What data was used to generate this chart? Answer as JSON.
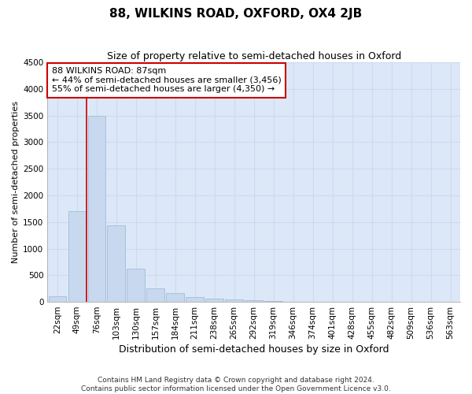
{
  "title": "88, WILKINS ROAD, OXFORD, OX4 2JB",
  "subtitle": "Size of property relative to semi-detached houses in Oxford",
  "xlabel": "Distribution of semi-detached houses by size in Oxford",
  "ylabel": "Number of semi-detached properties",
  "footer_line1": "Contains HM Land Registry data © Crown copyright and database right 2024.",
  "footer_line2": "Contains public sector information licensed under the Open Government Licence v3.0.",
  "categories": [
    "22sqm",
    "49sqm",
    "76sqm",
    "103sqm",
    "130sqm",
    "157sqm",
    "184sqm",
    "211sqm",
    "238sqm",
    "265sqm",
    "292sqm",
    "319sqm",
    "346sqm",
    "374sqm",
    "401sqm",
    "428sqm",
    "455sqm",
    "482sqm",
    "509sqm",
    "536sqm",
    "563sqm"
  ],
  "bar_values": [
    110,
    1700,
    3500,
    1430,
    620,
    255,
    160,
    95,
    65,
    40,
    25,
    12,
    6,
    3,
    2,
    1,
    1,
    1,
    0,
    0,
    0
  ],
  "bar_color": "#c8d8ee",
  "bar_edge_color": "#a0bcd8",
  "grid_color": "#cddaee",
  "bg_color": "#dce8f8",
  "fig_bg_color": "#ffffff",
  "vline_x": 1.5,
  "vline_color": "#cc0000",
  "ylim": [
    0,
    4500
  ],
  "yticks": [
    0,
    500,
    1000,
    1500,
    2000,
    2500,
    3000,
    3500,
    4000,
    4500
  ],
  "annotation_text": "88 WILKINS ROAD: 87sqm\n← 44% of semi-detached houses are smaller (3,456)\n55% of semi-detached houses are larger (4,350) →",
  "annotation_box_color": "#ffffff",
  "annotation_box_edge": "#cc0000",
  "title_fontsize": 11,
  "subtitle_fontsize": 9,
  "xlabel_fontsize": 9,
  "ylabel_fontsize": 8,
  "tick_fontsize": 7.5,
  "annotation_fontsize": 8,
  "footer_fontsize": 6.5
}
